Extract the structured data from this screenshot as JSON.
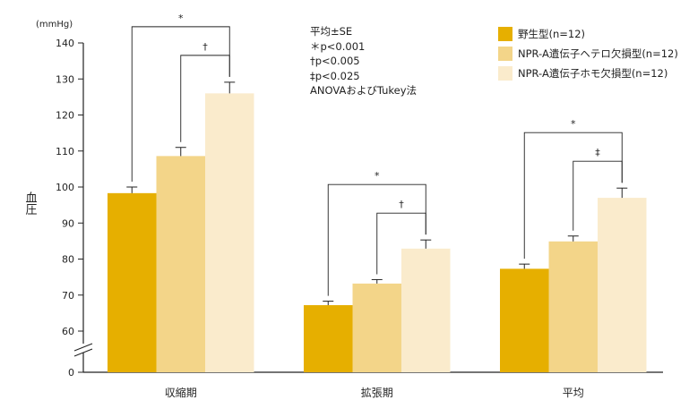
{
  "chart_data": {
    "type": "bar",
    "title": "",
    "unit_label": "(mmHg)",
    "ylabel": "血圧",
    "ylim": [
      60,
      140
    ],
    "axis_break": true,
    "yticks": [
      "140",
      "130",
      "120",
      "110",
      "100",
      "90",
      "80",
      "70",
      "60",
      "0"
    ],
    "categories": [
      "収縮期",
      "拡張期",
      "平均"
    ],
    "series": [
      {
        "name": "野生型(n=12)",
        "color": "#E6AF00",
        "values": [
          98.3,
          67.2,
          77.3
        ],
        "errors": [
          1.7,
          1.1,
          1.3
        ]
      },
      {
        "name": "NPR-A遺伝子ヘテロ欠損型(n=12)",
        "color": "#F3D589",
        "values": [
          108.6,
          73.2,
          84.9
        ],
        "errors": [
          2.4,
          1.1,
          1.5
        ]
      },
      {
        "name": "NPR-A遺伝子ホモ欠損型(n=12)",
        "color": "#FAEBCC",
        "values": [
          126.0,
          82.9,
          97.0
        ],
        "errors": [
          3.1,
          2.4,
          2.7
        ]
      }
    ],
    "significance": [
      {
        "category": 0,
        "from": 0,
        "to": 2,
        "mark": "*"
      },
      {
        "category": 0,
        "from": 1,
        "to": 2,
        "mark": "†"
      },
      {
        "category": 1,
        "from": 0,
        "to": 2,
        "mark": "*"
      },
      {
        "category": 1,
        "from": 1,
        "to": 2,
        "mark": "†"
      },
      {
        "category": 2,
        "from": 0,
        "to": 2,
        "mark": "*"
      },
      {
        "category": 2,
        "from": 1,
        "to": 2,
        "mark": "‡"
      }
    ],
    "legend_position": "top-right",
    "notes": [
      "平均±SE",
      "＊p<0.001",
      "†p<0.005",
      "‡p<0.025",
      "ANOVAおよびTukey法"
    ]
  }
}
